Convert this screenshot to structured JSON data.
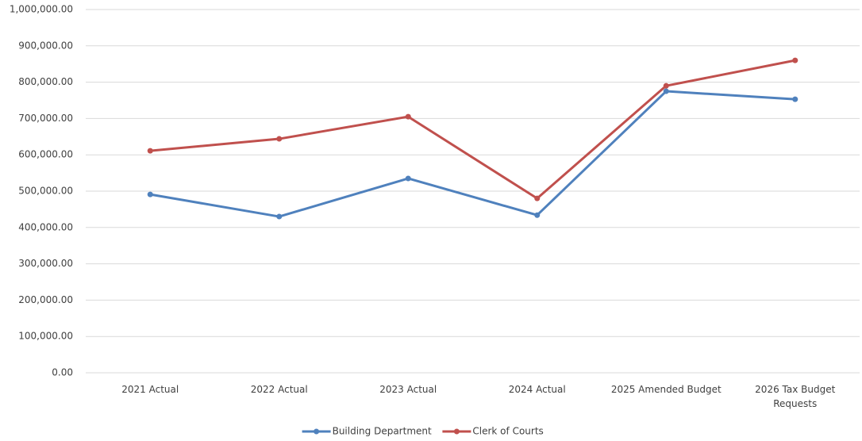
{
  "chart_data": {
    "type": "line",
    "categories": [
      "2021 Actual",
      "2022 Actual",
      "2023 Actual",
      "2024 Actual",
      "2025 Amended Budget",
      "2026 Tax Budget Requests"
    ],
    "series": [
      {
        "name": "Building Department",
        "color": "#4f81bd",
        "values": [
          491000,
          430000,
          535000,
          434000,
          775000,
          753000
        ]
      },
      {
        "name": "Clerk of Courts",
        "color": "#c0504d",
        "values": [
          611000,
          644000,
          705000,
          480000,
          790000,
          860000
        ]
      }
    ],
    "ylim": [
      0,
      1000000
    ],
    "yticks": [
      {
        "value": 0,
        "label": "0.00"
      },
      {
        "value": 100000,
        "label": "100,000.00"
      },
      {
        "value": 200000,
        "label": "200,000.00"
      },
      {
        "value": 300000,
        "label": "300,000.00"
      },
      {
        "value": 400000,
        "label": "400,000.00"
      },
      {
        "value": 500000,
        "label": "500,000.00"
      },
      {
        "value": 600000,
        "label": "600,000.00"
      },
      {
        "value": 700000,
        "label": "700,000.00"
      },
      {
        "value": 800000,
        "label": "800,000.00"
      },
      {
        "value": 900000,
        "label": "900,000.00"
      },
      {
        "value": 1000000,
        "label": "1,000,000.00"
      }
    ],
    "grid": true,
    "legend": "bottom"
  }
}
